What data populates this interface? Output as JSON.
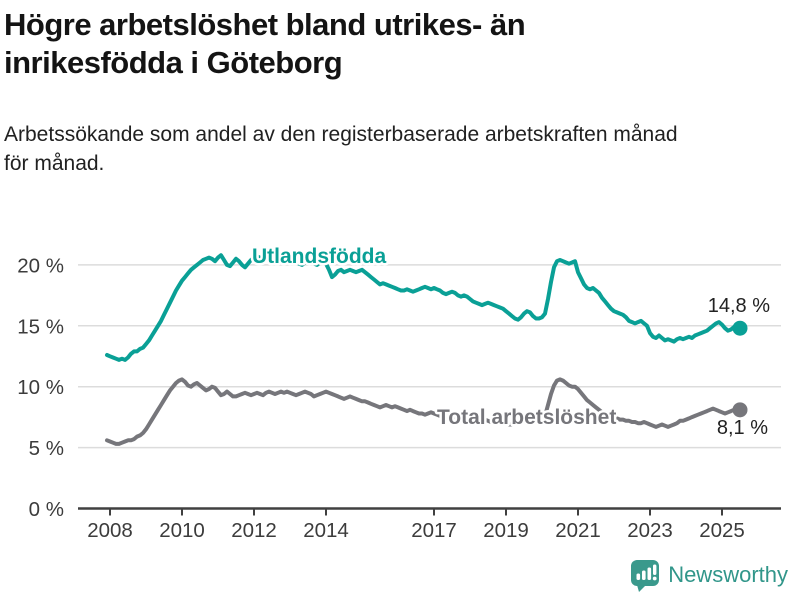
{
  "header": {
    "title": "Högre arbetslöshet bland utrikes- än inrikesfödda i Göteborg",
    "title_lines": [
      "Högre arbetslöshet bland utrikes- än",
      "inrikesfödda i Göteborg"
    ],
    "subtitle": "Arbetssökande som andel av den registerbaserade arbetskraften månad för månad.",
    "subtitle_lines": [
      "Arbetssökande som andel av den registerbaserade arbetskraften månad",
      "för månad."
    ]
  },
  "footer": {
    "brand": "Newsworthy",
    "brand_color": "#31968a",
    "logo_icon": "bar-chart-speech-bubble-icon"
  },
  "chart_data": {
    "type": "line",
    "title": "Högre arbetslöshet bland utrikes- än inrikesfödda i Göteborg",
    "subtitle": "Arbetssökande som andel av den registerbaserade arbetskraften månad för månad.",
    "x_unit": "month",
    "x_start": "2008-01",
    "x_end": "2025-08",
    "x_tick_years": [
      2008,
      2010,
      2012,
      2014,
      2017,
      2019,
      2021,
      2023,
      2025
    ],
    "x_tick_labels": [
      "2008",
      "2010",
      "2012",
      "2014",
      "2017",
      "2019",
      "2021",
      "2023",
      "2025"
    ],
    "y_ticks": [
      0,
      5,
      10,
      15,
      20
    ],
    "y_tick_labels": [
      "0 %",
      "5 %",
      "10 %",
      "15 %",
      "20 %"
    ],
    "ylim": [
      0,
      22
    ],
    "grid": "horizontal",
    "legend_position": "inline-labels",
    "series": [
      {
        "name": "Utlandsfödda",
        "color": "#0aa096",
        "end_label": "14,8 %",
        "end_value": 14.8,
        "values": [
          12.6,
          12.5,
          12.4,
          12.3,
          12.2,
          12.3,
          12.2,
          12.4,
          12.7,
          12.9,
          12.9,
          13.1,
          13.2,
          13.5,
          13.8,
          14.2,
          14.6,
          15.0,
          15.4,
          15.9,
          16.4,
          16.9,
          17.4,
          17.9,
          18.3,
          18.7,
          19.0,
          19.3,
          19.6,
          19.8,
          20.0,
          20.2,
          20.4,
          20.5,
          20.6,
          20.5,
          20.3,
          20.6,
          20.8,
          20.4,
          20.0,
          19.9,
          20.2,
          20.5,
          20.3,
          20.0,
          19.8,
          20.1,
          20.4,
          20.6,
          20.7,
          20.6,
          20.5,
          20.6,
          20.8,
          20.7,
          20.6,
          20.4,
          20.5,
          20.7,
          20.8,
          20.7,
          20.5,
          20.3,
          20.1,
          20.0,
          20.2,
          20.4,
          20.3,
          20.1,
          20.0,
          20.2,
          20.3,
          20.1,
          19.6,
          19.0,
          19.2,
          19.5,
          19.6,
          19.4,
          19.5,
          19.6,
          19.5,
          19.4,
          19.5,
          19.6,
          19.4,
          19.2,
          19.0,
          18.8,
          18.6,
          18.4,
          18.5,
          18.4,
          18.3,
          18.2,
          18.1,
          18.0,
          17.9,
          17.9,
          18.0,
          17.9,
          17.8,
          17.9,
          18.0,
          18.1,
          18.2,
          18.1,
          18.0,
          18.1,
          18.0,
          17.9,
          17.7,
          17.6,
          17.7,
          17.8,
          17.7,
          17.5,
          17.4,
          17.5,
          17.4,
          17.2,
          17.0,
          16.9,
          16.8,
          16.7,
          16.8,
          16.9,
          16.8,
          16.7,
          16.6,
          16.5,
          16.4,
          16.2,
          16.0,
          15.8,
          15.6,
          15.5,
          15.7,
          16.0,
          16.2,
          16.1,
          15.8,
          15.6,
          15.6,
          15.7,
          16.0,
          17.2,
          18.6,
          19.8,
          20.3,
          20.4,
          20.3,
          20.2,
          20.1,
          20.2,
          20.3,
          19.4,
          18.9,
          18.4,
          18.1,
          18.0,
          18.1,
          17.9,
          17.7,
          17.3,
          17.0,
          16.7,
          16.4,
          16.2,
          16.1,
          16.0,
          15.9,
          15.7,
          15.4,
          15.3,
          15.2,
          15.3,
          15.4,
          15.2,
          15.0,
          14.4,
          14.1,
          14.0,
          14.2,
          14.0,
          13.8,
          13.9,
          13.8,
          13.7,
          13.9,
          14.0,
          13.9,
          14.0,
          14.1,
          14.0,
          14.2,
          14.3,
          14.4,
          14.5,
          14.6,
          14.8,
          15.0,
          15.2,
          15.3,
          15.1,
          14.8,
          14.6,
          14.7,
          14.9,
          15.0,
          14.8
        ]
      },
      {
        "name": "Total arbetslöshet",
        "color": "#76767b",
        "end_label": "8,1 %",
        "end_value": 8.1,
        "values": [
          5.6,
          5.5,
          5.4,
          5.3,
          5.3,
          5.4,
          5.5,
          5.6,
          5.6,
          5.7,
          5.9,
          6.0,
          6.2,
          6.5,
          6.9,
          7.3,
          7.7,
          8.1,
          8.5,
          8.9,
          9.3,
          9.7,
          10.0,
          10.3,
          10.5,
          10.6,
          10.4,
          10.1,
          10.0,
          10.2,
          10.3,
          10.1,
          9.9,
          9.7,
          9.8,
          10.0,
          9.9,
          9.6,
          9.3,
          9.4,
          9.6,
          9.4,
          9.2,
          9.2,
          9.3,
          9.4,
          9.5,
          9.4,
          9.3,
          9.4,
          9.5,
          9.4,
          9.3,
          9.5,
          9.6,
          9.5,
          9.4,
          9.5,
          9.6,
          9.5,
          9.6,
          9.5,
          9.4,
          9.3,
          9.4,
          9.5,
          9.6,
          9.5,
          9.4,
          9.2,
          9.3,
          9.4,
          9.5,
          9.6,
          9.5,
          9.4,
          9.3,
          9.2,
          9.1,
          9.0,
          9.1,
          9.2,
          9.1,
          9.0,
          8.9,
          8.8,
          8.8,
          8.7,
          8.6,
          8.5,
          8.4,
          8.3,
          8.4,
          8.5,
          8.4,
          8.3,
          8.4,
          8.3,
          8.2,
          8.1,
          8.0,
          8.1,
          8.0,
          7.9,
          7.8,
          7.8,
          7.7,
          7.8,
          7.9,
          7.8,
          7.7,
          7.6,
          7.6,
          7.7,
          7.7,
          7.6,
          7.5,
          7.5,
          7.6,
          7.5,
          7.4,
          7.4,
          7.3,
          7.2,
          7.2,
          7.3,
          7.3,
          7.2,
          7.1,
          7.1,
          7.2,
          7.1,
          7.0,
          7.0,
          6.9,
          6.9,
          7.0,
          7.0,
          7.1,
          7.2,
          7.1,
          7.1,
          7.2,
          7.2,
          7.2,
          7.3,
          7.6,
          8.5,
          9.4,
          10.1,
          10.5,
          10.6,
          10.5,
          10.3,
          10.1,
          10.0,
          10.0,
          9.8,
          9.5,
          9.2,
          8.9,
          8.7,
          8.5,
          8.3,
          8.1,
          7.9,
          7.8,
          7.6,
          7.5,
          7.4,
          7.4,
          7.3,
          7.3,
          7.2,
          7.2,
          7.1,
          7.1,
          7.0,
          7.0,
          7.1,
          7.0,
          6.9,
          6.8,
          6.7,
          6.8,
          6.9,
          6.8,
          6.7,
          6.8,
          6.9,
          7.0,
          7.2,
          7.2,
          7.3,
          7.4,
          7.5,
          7.6,
          7.7,
          7.8,
          7.9,
          8.0,
          8.1,
          8.2,
          8.1,
          8.0,
          7.9,
          7.8,
          7.9,
          8.0,
          8.1,
          8.2,
          8.1
        ]
      }
    ]
  }
}
